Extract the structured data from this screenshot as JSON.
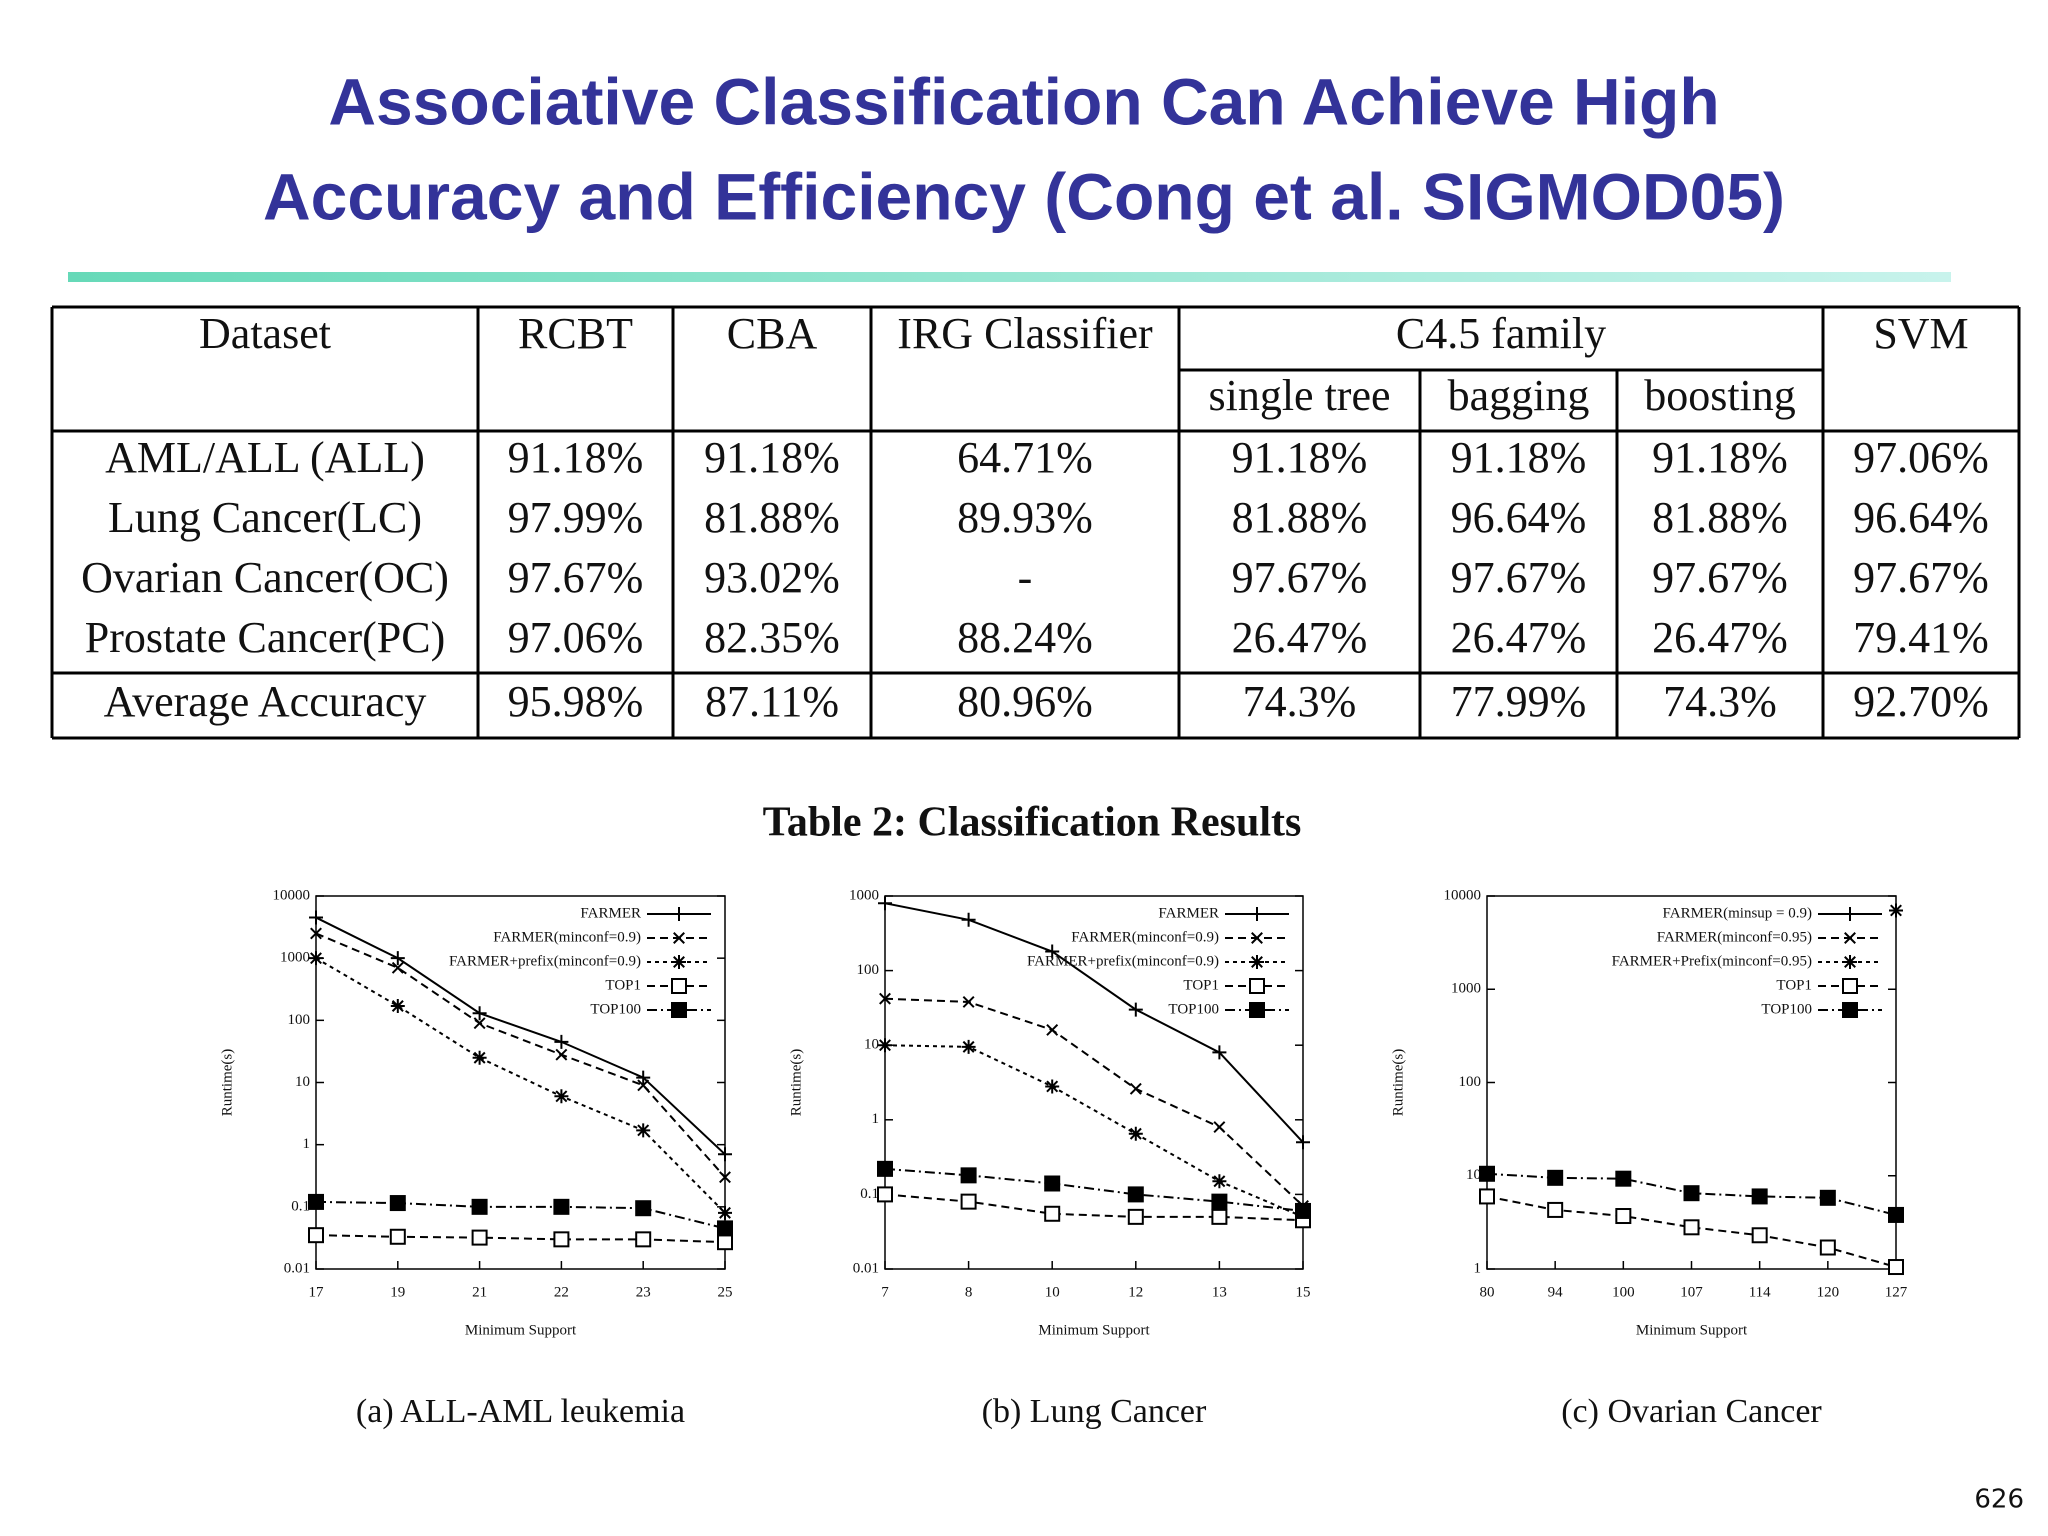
{
  "title": [
    "Associative Classification Can Achieve High",
    "Accuracy and Efficiency (Cong et al. SIGMOD05)"
  ],
  "table": {
    "header": [
      "Dataset",
      "RCBT",
      "CBA",
      "IRG Classifier",
      "C4.5 family",
      "SVM"
    ],
    "subheader": [
      "single tree",
      "bagging",
      "boosting"
    ],
    "rows": [
      [
        "AML/ALL (ALL)",
        "91.18%",
        "91.18%",
        "64.71%",
        "91.18%",
        "91.18%",
        "91.18%",
        "97.06%"
      ],
      [
        "Lung Cancer(LC)",
        "97.99%",
        "81.88%",
        "89.93%",
        "81.88%",
        "96.64%",
        "81.88%",
        "96.64%"
      ],
      [
        "Ovarian Cancer(OC)",
        "97.67%",
        "93.02%",
        "-",
        "97.67%",
        "97.67%",
        "97.67%",
        "97.67%"
      ],
      [
        "Prostate Cancer(PC)",
        "97.06%",
        "82.35%",
        "88.24%",
        "26.47%",
        "26.47%",
        "26.47%",
        "79.41%"
      ]
    ],
    "average": [
      "Average Accuracy",
      "95.98%",
      "87.11%",
      "80.96%",
      "74.3%",
      "77.99%",
      "74.3%",
      "92.70%"
    ]
  },
  "table_caption": "Table 2: Classification Results",
  "chart_data": [
    {
      "type": "line",
      "title": "(a) ALL-AML leukemia",
      "x_label": "Minimum Support",
      "y_label": "Runtime(s)",
      "categories": [
        "17",
        "19",
        "21",
        "22",
        "23",
        "25"
      ],
      "log_y": true,
      "ylim": [
        0.01,
        10000
      ],
      "yticks": [
        0.01,
        0.1,
        1,
        10,
        100,
        1000,
        10000
      ],
      "legend": "upper right",
      "series": [
        {
          "name": "FARMER",
          "color": "#000000",
          "marker": "plus",
          "dash": "solid",
          "values": [
            4500,
            1000,
            130,
            45,
            12,
            0.7
          ]
        },
        {
          "name": "FARMER(minconf=0.9)",
          "color": "#000000",
          "marker": "x",
          "dash": "dashed",
          "values": [
            2500,
            700,
            90,
            28,
            9,
            0.3
          ]
        },
        {
          "name": "FARMER+prefix(minconf=0.9)",
          "color": "#000000",
          "marker": "star",
          "dash": "dotted",
          "values": [
            1000,
            170,
            25,
            6,
            1.7,
            0.08
          ]
        },
        {
          "name": "TOP1",
          "color": "#000000",
          "marker": "open-square",
          "dash": "dashed",
          "values": [
            0.035,
            0.033,
            0.032,
            0.03,
            0.03,
            0.027
          ]
        },
        {
          "name": "TOP100",
          "color": "#000000",
          "marker": "filled-square",
          "dash": "dash-dot",
          "values": [
            0.12,
            0.115,
            0.1,
            0.1,
            0.095,
            0.045
          ]
        }
      ]
    },
    {
      "type": "line",
      "title": "(b) Lung Cancer",
      "x_label": "Minimum Support",
      "y_label": "Runtime(s)",
      "categories": [
        "7",
        "8",
        "10",
        "12",
        "13",
        "15"
      ],
      "log_y": true,
      "ylim": [
        0.01,
        1000
      ],
      "yticks": [
        0.01,
        0.1,
        1,
        10,
        100,
        1000
      ],
      "legend": "upper right",
      "series": [
        {
          "name": "FARMER",
          "color": "#000000",
          "marker": "plus",
          "dash": "solid",
          "values": [
            800,
            480,
            180,
            30,
            8,
            0.5
          ]
        },
        {
          "name": "FARMER(minconf=0.9)",
          "color": "#000000",
          "marker": "x",
          "dash": "dashed",
          "values": [
            42,
            38,
            16,
            2.6,
            0.8,
            0.07
          ]
        },
        {
          "name": "FARMER+prefix(minconf=0.9)",
          "color": "#000000",
          "marker": "star",
          "dash": "dotted",
          "values": [
            10,
            9.5,
            2.8,
            0.65,
            0.15,
            0.05
          ]
        },
        {
          "name": "TOP1",
          "color": "#000000",
          "marker": "open-square",
          "dash": "dashed",
          "values": [
            0.1,
            0.08,
            0.055,
            0.05,
            0.05,
            0.045
          ]
        },
        {
          "name": "TOP100",
          "color": "#000000",
          "marker": "filled-square",
          "dash": "dash-dot",
          "values": [
            0.22,
            0.18,
            0.14,
            0.1,
            0.08,
            0.06
          ]
        }
      ]
    },
    {
      "type": "line",
      "title": "(c) Ovarian Cancer",
      "x_label": "Minimum Support",
      "y_label": "Runtime(s)",
      "categories": [
        "80",
        "94",
        "100",
        "107",
        "114",
        "120",
        "127"
      ],
      "log_y": true,
      "ylim": [
        1,
        10000
      ],
      "yticks": [
        1,
        10,
        100,
        1000,
        10000
      ],
      "legend": "upper right",
      "series": [
        {
          "name": "FARMER(minsup = 0.9)",
          "color": "#000000",
          "marker": "plus",
          "dash": "solid",
          "values": [
            null,
            null,
            null,
            null,
            null,
            null,
            null
          ]
        },
        {
          "name": "FARMER(minconf=0.95)",
          "color": "#000000",
          "marker": "x",
          "dash": "dashed",
          "values": [
            null,
            null,
            null,
            null,
            null,
            null,
            null
          ]
        },
        {
          "name": "FARMER+Prefix(minconf=0.95)",
          "color": "#000000",
          "marker": "star",
          "dash": "dotted",
          "values": [
            null,
            null,
            null,
            null,
            null,
            null,
            7000
          ]
        },
        {
          "name": "TOP1",
          "color": "#000000",
          "marker": "open-square",
          "dash": "dashed",
          "values": [
            6,
            4.3,
            3.7,
            2.8,
            2.3,
            1.7,
            1.05
          ]
        },
        {
          "name": "TOP100",
          "color": "#000000",
          "marker": "filled-square",
          "dash": "dash-dot",
          "values": [
            10.5,
            9.5,
            9.3,
            6.5,
            6,
            5.8,
            3.8
          ]
        }
      ]
    }
  ],
  "page_number": "626"
}
